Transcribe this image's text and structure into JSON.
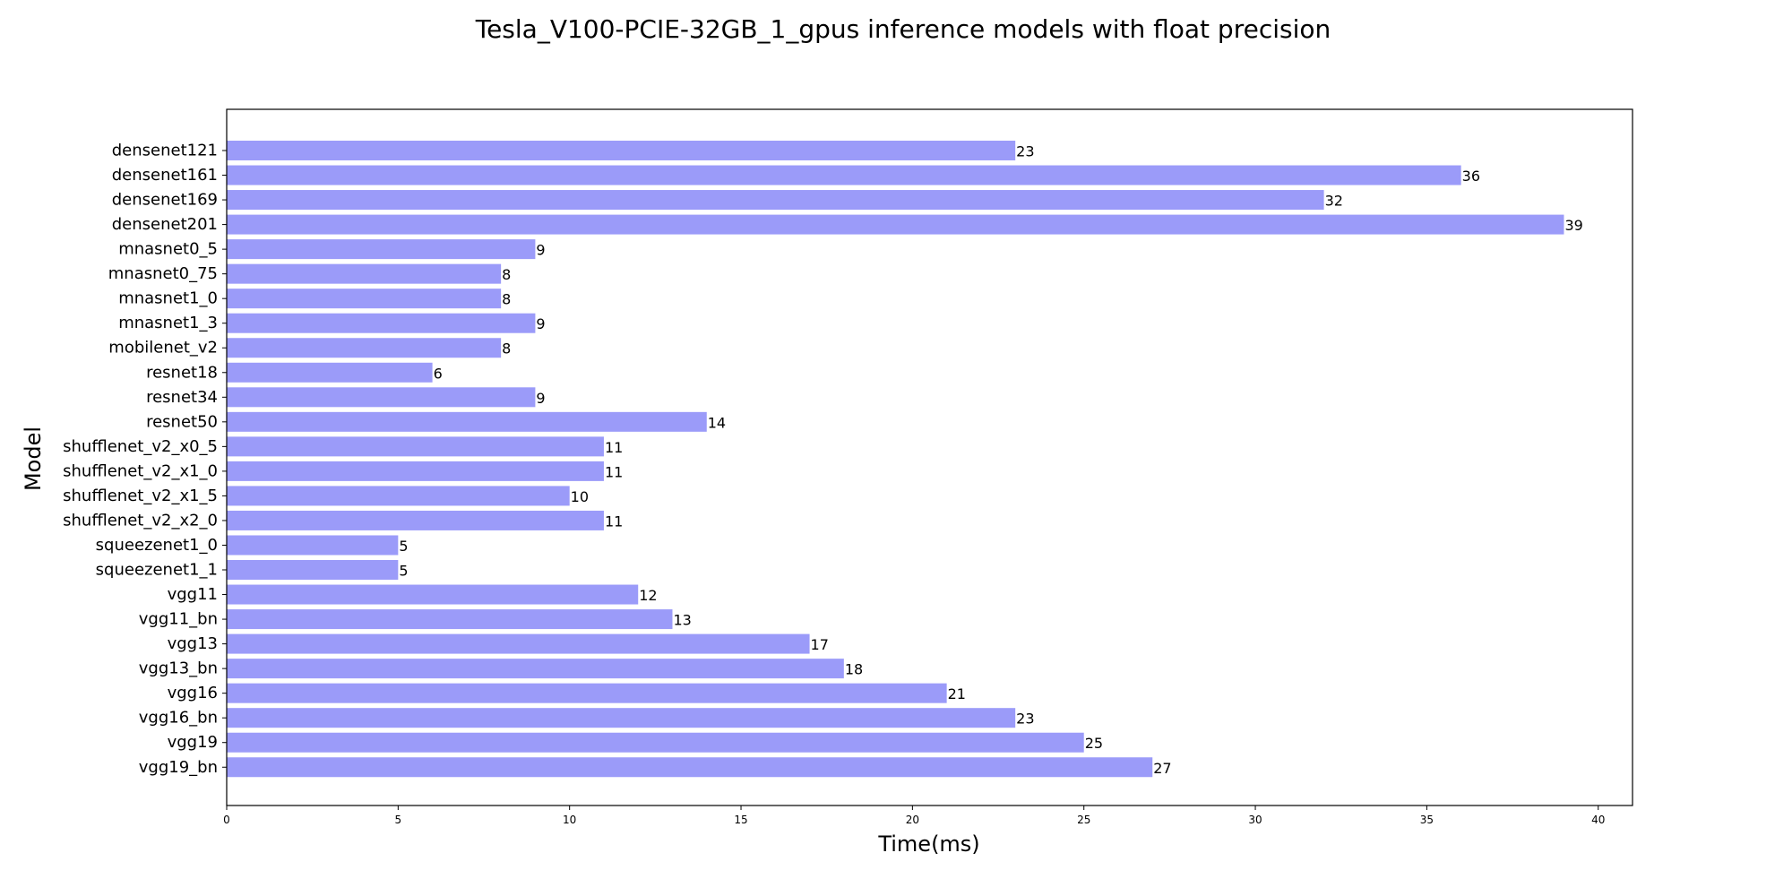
{
  "chart_data": {
    "type": "bar",
    "orientation": "horizontal",
    "title": "Tesla_V100-PCIE-32GB_1_gpus inference models with float precision",
    "xlabel": "Time(ms)",
    "ylabel": "Model",
    "xlim": [
      0,
      41
    ],
    "xticks": [
      "0",
      "5",
      "10",
      "15",
      "20",
      "25",
      "30",
      "35",
      "40"
    ],
    "bar_color": "#9b9bf9",
    "grid": false,
    "categories": [
      "densenet121",
      "densenet161",
      "densenet169",
      "densenet201",
      "mnasnet0_5",
      "mnasnet0_75",
      "mnasnet1_0",
      "mnasnet1_3",
      "mobilenet_v2",
      "resnet18",
      "resnet34",
      "resnet50",
      "shufflenet_v2_x0_5",
      "shufflenet_v2_x1_0",
      "shufflenet_v2_x1_5",
      "shufflenet_v2_x2_0",
      "squeezenet1_0",
      "squeezenet1_1",
      "vgg11",
      "vgg11_bn",
      "vgg13",
      "vgg13_bn",
      "vgg16",
      "vgg16_bn",
      "vgg19",
      "vgg19_bn"
    ],
    "values": [
      23,
      36,
      32,
      39,
      9,
      8,
      8,
      9,
      8,
      6,
      9,
      14,
      11,
      11,
      10,
      11,
      5,
      5,
      12,
      13,
      17,
      18,
      21,
      23,
      25,
      27
    ]
  }
}
